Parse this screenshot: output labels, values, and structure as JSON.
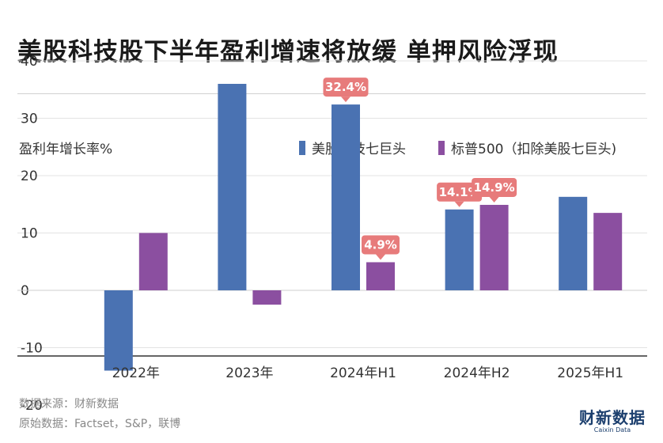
{
  "title": "美股科技股下半年盈利增速将放缓 单押风险浮现",
  "ylabel": "盈利年增长率%",
  "legend": [
    {
      "label": "美股科技七巨头",
      "color": "#4a72b2"
    },
    {
      "label": "标普500（扣除美股七巨头)",
      "color": "#8b4fa0"
    }
  ],
  "source_line1": "数据来源：财新数据",
  "source_line2": "原始数据：Factset，S&P，联博",
  "logo": {
    "cn": "财新数据",
    "en": "Caixin Data"
  },
  "chart_data": {
    "type": "bar",
    "categories": [
      "2022年",
      "2023年",
      "2024年H1",
      "2024年H2",
      "2025年H1"
    ],
    "series": [
      {
        "name": "美股科技七巨头",
        "color": "#4a72b2",
        "values": [
          -14,
          36,
          32.4,
          14.1,
          16.3
        ]
      },
      {
        "name": "标普500（扣除美股七巨头)",
        "color": "#8b4fa0",
        "values": [
          10,
          -2.5,
          4.9,
          14.9,
          13.5
        ]
      }
    ],
    "yticks": [
      "40",
      "30",
      "20",
      "10",
      "0",
      "-10",
      "-20"
    ],
    "ylim": [
      -20,
      40
    ],
    "grid": true,
    "annotations": [
      {
        "series": 0,
        "category": 2,
        "label": "32.4%"
      },
      {
        "series": 1,
        "category": 2,
        "label": "4.9%"
      },
      {
        "series": 0,
        "category": 3,
        "label": "14.1%"
      },
      {
        "series": 1,
        "category": 3,
        "label": "14.9%"
      }
    ],
    "callout_color": "#e77b7b"
  }
}
